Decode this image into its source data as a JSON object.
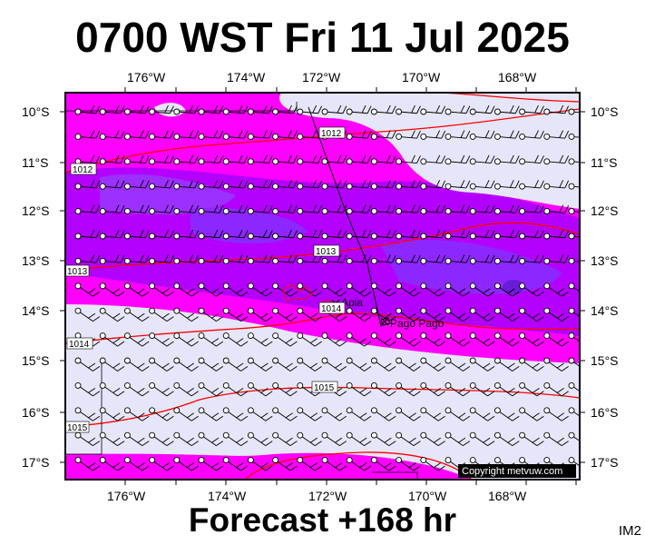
{
  "header": {
    "title": "0700 WST Fri 11 Jul 2025"
  },
  "footer": {
    "forecast": "Forecast +168 hr",
    "code": "IM2"
  },
  "map": {
    "lon_ticks": [
      "176°W",
      "174°W",
      "172°W",
      "170°W",
      "168°W"
    ],
    "lat_ticks": [
      "10°S",
      "11°S",
      "12°S",
      "13°S",
      "14°S",
      "15°S",
      "16°S",
      "17°S"
    ],
    "isobar_labels": [
      "1012",
      "1012",
      "1013",
      "1013",
      "1014",
      "1014",
      "1015",
      "1015"
    ],
    "places": [
      "Apia",
      "Pago Pago"
    ],
    "copyright": "Copyright metvuw.com"
  },
  "colors": {
    "magenta": "#ff00ff",
    "violet": "#b400ff",
    "purple": "#8c28ff",
    "pale": "#e6e6fa",
    "isobar": "#ff0000"
  }
}
